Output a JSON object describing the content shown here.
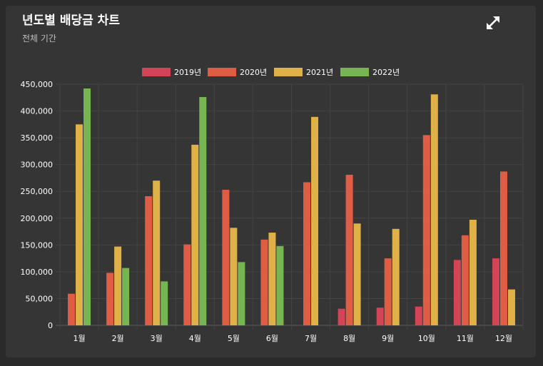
{
  "card": {
    "title": "년도별 배당금 차트",
    "subtitle": "전체 기간",
    "expand_icon": "expand-arrows-icon"
  },
  "chart_data": {
    "type": "bar",
    "categories": [
      "1월",
      "2월",
      "3월",
      "4월",
      "5월",
      "6월",
      "7월",
      "8월",
      "9월",
      "10월",
      "11월",
      "12월"
    ],
    "series": [
      {
        "name": "2019년",
        "color": "#d44457",
        "values": [
          0,
          0,
          0,
          0,
          0,
          0,
          0,
          31000,
          33000,
          35000,
          122000,
          125000
        ]
      },
      {
        "name": "2020년",
        "color": "#e05d45",
        "values": [
          59000,
          98000,
          241000,
          151000,
          253000,
          160000,
          267000,
          281000,
          125000,
          355000,
          168000,
          287000
        ]
      },
      {
        "name": "2021년",
        "color": "#dfb146",
        "values": [
          375000,
          147000,
          270000,
          337000,
          182000,
          173000,
          389000,
          190000,
          180000,
          431000,
          197000,
          67000
        ]
      },
      {
        "name": "2022년",
        "color": "#77b553",
        "values": [
          442000,
          107000,
          82000,
          426000,
          118000,
          148000,
          0,
          0,
          0,
          0,
          0,
          0
        ]
      }
    ],
    "y_ticks": [
      "0",
      "50,000",
      "100,000",
      "150,000",
      "200,000",
      "250,000",
      "300,000",
      "350,000",
      "400,000",
      "450,000"
    ],
    "ylim": [
      0,
      450000
    ],
    "grid": true,
    "legend_position": "top-center"
  }
}
